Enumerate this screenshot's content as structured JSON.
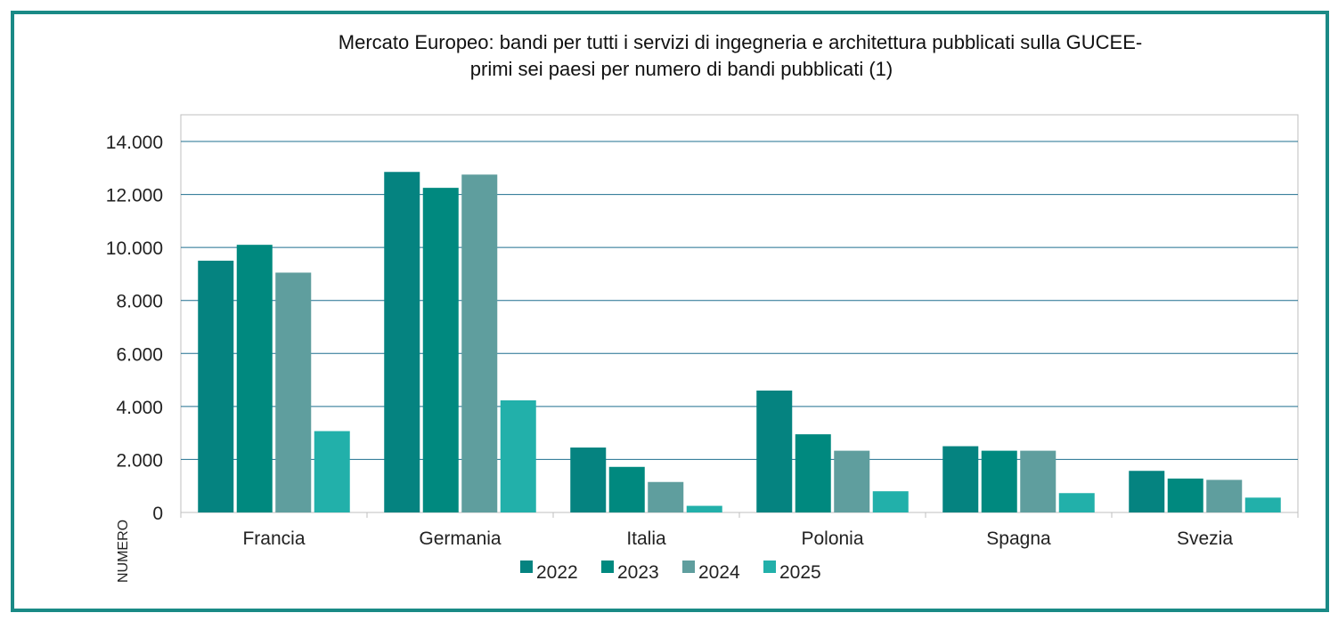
{
  "chart_data": {
    "type": "bar",
    "title": "Mercato Europeo: bandi per tutti i servizi di ingegneria e architettura pubblicati sulla GUCEE-",
    "subtitle": "primi sei paesi per numero di bandi pubblicati (1)",
    "ylabel": "NUMERO",
    "xlabel": "",
    "ylim": [
      0,
      14000
    ],
    "yticks": [
      0,
      2000,
      4000,
      6000,
      8000,
      10000,
      12000,
      14000
    ],
    "ytick_labels": [
      "0",
      "2.000",
      "4.000",
      "6.000",
      "8.000",
      "10.000",
      "12.000",
      "14.000"
    ],
    "grid": true,
    "legend": "bottom",
    "categories": [
      "Francia",
      "Germania",
      "Italia",
      "Polonia",
      "Spagna",
      "Svezia"
    ],
    "series": [
      {
        "name": "2022",
        "color": "#058380",
        "values": [
          9500,
          12850,
          2450,
          4600,
          2500,
          1570
        ]
      },
      {
        "name": "2023",
        "color": "#00897f",
        "values": [
          10100,
          12250,
          1720,
          2950,
          2330,
          1280
        ]
      },
      {
        "name": "2024",
        "color": "#5f9e9e",
        "values": [
          9050,
          12750,
          1150,
          2330,
          2330,
          1230
        ]
      },
      {
        "name": "2025",
        "color": "#22b0aa",
        "values": [
          3070,
          4230,
          250,
          800,
          730,
          560
        ]
      }
    ]
  }
}
